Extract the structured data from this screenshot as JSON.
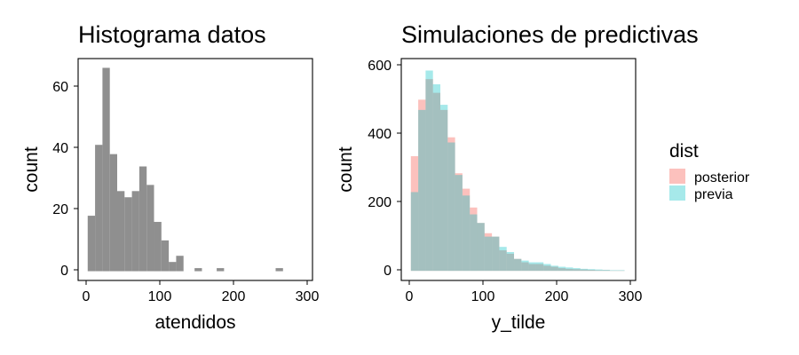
{
  "chart_data": [
    {
      "type": "bar",
      "title": "Histograma datos",
      "xlabel": "atendidos",
      "ylabel": "count",
      "xlim": [
        -8,
        310
      ],
      "ylim": [
        -3,
        69
      ],
      "xticks": [
        0,
        100,
        200,
        300
      ],
      "yticks": [
        0,
        20,
        40,
        60
      ],
      "grid": false,
      "bin_width": 10,
      "series": [
        {
          "color": "#8f8f8f",
          "bins": [
            {
              "x": 10,
              "y": 18
            },
            {
              "x": 20,
              "y": 41
            },
            {
              "x": 30,
              "y": 66
            },
            {
              "x": 40,
              "y": 38
            },
            {
              "x": 50,
              "y": 26
            },
            {
              "x": 60,
              "y": 24
            },
            {
              "x": 70,
              "y": 26
            },
            {
              "x": 80,
              "y": 34
            },
            {
              "x": 90,
              "y": 28
            },
            {
              "x": 100,
              "y": 16
            },
            {
              "x": 110,
              "y": 10
            },
            {
              "x": 120,
              "y": 3
            },
            {
              "x": 130,
              "y": 5
            },
            {
              "x": 155,
              "y": 1
            },
            {
              "x": 185,
              "y": 1
            },
            {
              "x": 265,
              "y": 1
            }
          ]
        }
      ]
    },
    {
      "type": "bar",
      "title": "Simulaciones de predictivas",
      "xlabel": "y_tilde",
      "ylabel": "count",
      "xlim": [
        -8,
        310
      ],
      "ylim": [
        -28,
        620
      ],
      "xticks": [
        0,
        100,
        200,
        300
      ],
      "yticks": [
        0,
        200,
        400,
        600
      ],
      "grid": false,
      "legend": "right",
      "legend_title": "dist",
      "bin_width": 10,
      "series": [
        {
          "name": "posterior",
          "color": "#f8766d",
          "opacity": 0.45,
          "bins": [
            {
              "x": 10,
              "y": 335
            },
            {
              "x": 20,
              "y": 500
            },
            {
              "x": 30,
              "y": 560
            },
            {
              "x": 40,
              "y": 520
            },
            {
              "x": 50,
              "y": 470
            },
            {
              "x": 60,
              "y": 390
            },
            {
              "x": 70,
              "y": 285
            },
            {
              "x": 80,
              "y": 240
            },
            {
              "x": 90,
              "y": 185
            },
            {
              "x": 100,
              "y": 140
            },
            {
              "x": 110,
              "y": 110
            },
            {
              "x": 120,
              "y": 100
            },
            {
              "x": 130,
              "y": 60
            },
            {
              "x": 140,
              "y": 50
            },
            {
              "x": 150,
              "y": 35
            },
            {
              "x": 160,
              "y": 25
            },
            {
              "x": 170,
              "y": 20
            },
            {
              "x": 180,
              "y": 20
            },
            {
              "x": 190,
              "y": 15
            },
            {
              "x": 200,
              "y": 12
            },
            {
              "x": 210,
              "y": 8
            },
            {
              "x": 220,
              "y": 6
            },
            {
              "x": 230,
              "y": 5
            },
            {
              "x": 240,
              "y": 4
            },
            {
              "x": 250,
              "y": 3
            },
            {
              "x": 260,
              "y": 2
            },
            {
              "x": 270,
              "y": 2
            },
            {
              "x": 280,
              "y": 1
            },
            {
              "x": 290,
              "y": 1
            }
          ]
        },
        {
          "name": "previa",
          "color": "#00bfc4",
          "opacity": 0.35,
          "bins": [
            {
              "x": 10,
              "y": 230
            },
            {
              "x": 20,
              "y": 470
            },
            {
              "x": 30,
              "y": 585
            },
            {
              "x": 40,
              "y": 545
            },
            {
              "x": 50,
              "y": 485
            },
            {
              "x": 60,
              "y": 375
            },
            {
              "x": 70,
              "y": 280
            },
            {
              "x": 80,
              "y": 220
            },
            {
              "x": 90,
              "y": 165
            },
            {
              "x": 100,
              "y": 140
            },
            {
              "x": 110,
              "y": 100
            },
            {
              "x": 120,
              "y": 100
            },
            {
              "x": 130,
              "y": 70
            },
            {
              "x": 140,
              "y": 55
            },
            {
              "x": 150,
              "y": 35
            },
            {
              "x": 160,
              "y": 30
            },
            {
              "x": 170,
              "y": 25
            },
            {
              "x": 180,
              "y": 25
            },
            {
              "x": 190,
              "y": 20
            },
            {
              "x": 200,
              "y": 15
            },
            {
              "x": 210,
              "y": 12
            },
            {
              "x": 220,
              "y": 10
            },
            {
              "x": 230,
              "y": 8
            },
            {
              "x": 240,
              "y": 6
            },
            {
              "x": 250,
              "y": 5
            },
            {
              "x": 260,
              "y": 4
            },
            {
              "x": 270,
              "y": 3
            },
            {
              "x": 280,
              "y": 2
            },
            {
              "x": 290,
              "y": 2
            }
          ]
        }
      ]
    }
  ]
}
